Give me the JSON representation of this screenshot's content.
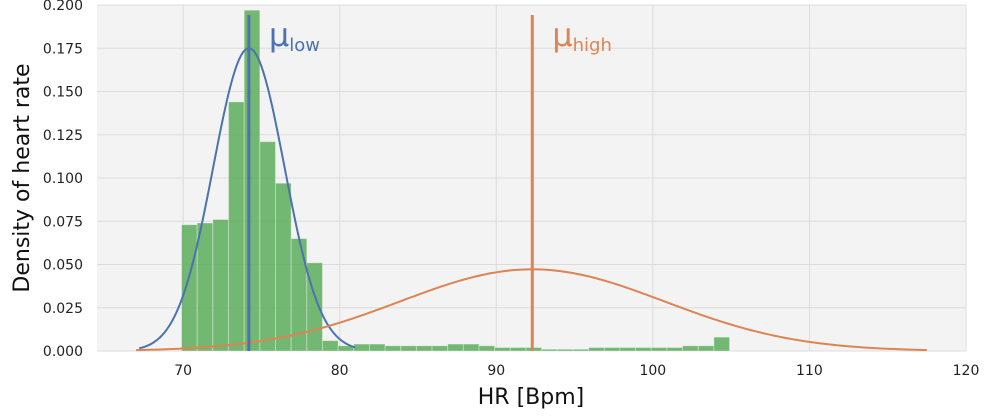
{
  "chart_data": {
    "type": "bar",
    "title": "",
    "xlabel": "HR [Bpm]",
    "ylabel": "Density of heart rate",
    "xlim": [
      64.5,
      120
    ],
    "ylim": [
      0,
      0.2
    ],
    "xticks": [
      70,
      80,
      90,
      100,
      110,
      120
    ],
    "yticks": [
      "0.000",
      "0.025",
      "0.050",
      "0.075",
      "0.100",
      "0.125",
      "0.150",
      "0.175",
      "0.200"
    ],
    "grid": true,
    "colors": {
      "background": "#f3f3f3",
      "grid": "#dcdcdc",
      "histogram": "#5aac5a",
      "low": "#4c72b0",
      "high": "#dd8452"
    },
    "histogram": {
      "bin_edges": [
        69.9,
        70.9,
        71.9,
        72.9,
        73.9,
        74.9,
        75.9,
        76.9,
        77.9,
        78.9,
        79.9,
        80.9,
        81.9,
        82.9,
        83.9,
        84.9,
        85.9,
        86.9,
        87.9,
        88.9,
        89.9,
        90.9,
        91.9,
        92.9,
        93.9,
        94.9,
        95.9,
        96.9,
        97.9,
        98.9,
        99.9,
        100.9,
        101.9,
        102.9,
        103.9,
        104.9
      ],
      "density": [
        0.073,
        0.074,
        0.076,
        0.144,
        0.197,
        0.121,
        0.097,
        0.065,
        0.051,
        0.006,
        0.003,
        0.004,
        0.004,
        0.003,
        0.003,
        0.003,
        0.003,
        0.004,
        0.004,
        0.003,
        0.002,
        0.002,
        0.002,
        0.001,
        0.001,
        0.001,
        0.002,
        0.002,
        0.002,
        0.002,
        0.002,
        0.002,
        0.003,
        0.003,
        0.008
      ]
    },
    "series": [
      {
        "name": "μlow",
        "kind": "gaussian",
        "mean": 74.2,
        "sd": 2.28,
        "x_range": [
          67.2,
          81.0
        ]
      },
      {
        "name": "μhigh",
        "kind": "gaussian",
        "mean": 92.3,
        "sd": 8.45,
        "x_range": [
          67.0,
          117.5
        ]
      }
    ],
    "annotations": [
      {
        "id": "low",
        "text": "μ",
        "subscript": "low",
        "x": 74.2
      },
      {
        "id": "high",
        "text": "μ",
        "subscript": "high",
        "x": 92.3
      }
    ]
  }
}
